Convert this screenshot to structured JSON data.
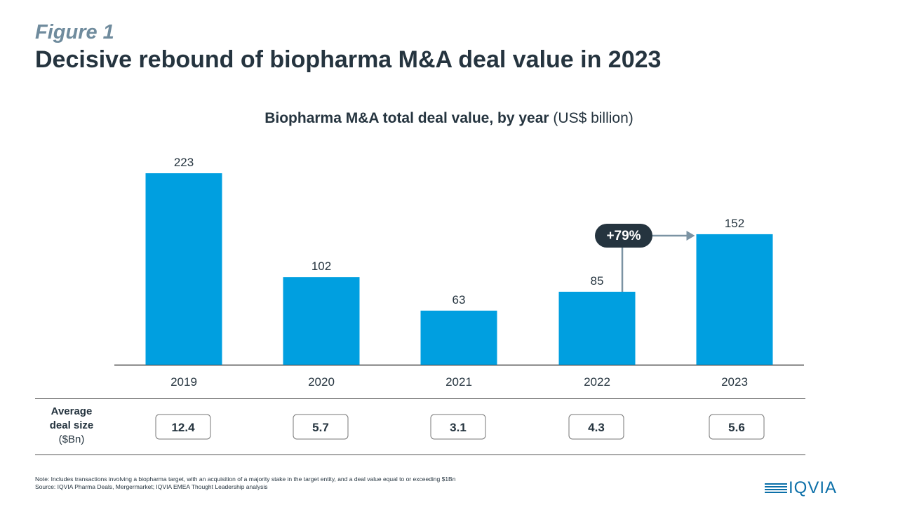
{
  "header": {
    "figure_label": "Figure 1",
    "title": "Decisive rebound of biopharma M&A deal value in 2023"
  },
  "chart_data": {
    "type": "bar",
    "title": "Biopharma M&A total deal value, by year",
    "title_unit": "(US$ billion)",
    "categories": [
      "2019",
      "2020",
      "2021",
      "2022",
      "2023"
    ],
    "values": [
      223,
      102,
      63,
      85,
      152
    ],
    "value_labels": [
      "223",
      "102",
      "63",
      "85",
      "152"
    ],
    "ylim": [
      0,
      240
    ],
    "grid": false,
    "bar_color": "#009fe0",
    "annotation": {
      "text": "+79%",
      "from": "2022",
      "to": "2023"
    },
    "average_deal_size": {
      "label_line1": "Average",
      "label_line2": "deal  size",
      "unit": "($Bn)",
      "values": [
        "12.4",
        "5.7",
        "3.1",
        "4.3",
        "5.6"
      ]
    }
  },
  "footer": {
    "note": "Note: Includes transactions involving a biopharma target, with an acquisition of a majority stake in the target entity, and a deal value equal to or exceeding $1Bn",
    "source": "Source: IQVIA Pharma Deals, Mergermarket; IQVIA EMEA Thought Leadership analysis",
    "logo_text": "IQVIA"
  },
  "colors": {
    "title": "#25343f",
    "figure_label": "#6f8b9d",
    "bar": "#009fe0",
    "annotation_bg": "#25343f",
    "arrow": "#7b93a3"
  }
}
